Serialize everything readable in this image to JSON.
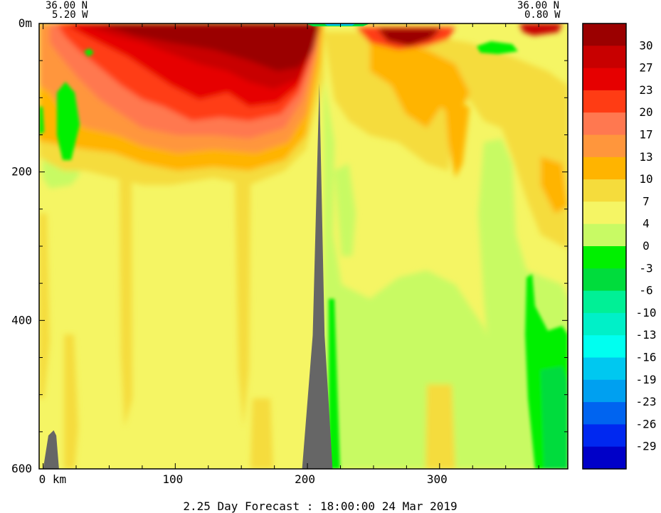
{
  "chart_data": {
    "type": "heatmap",
    "xlabel": "km",
    "x_ticks": [
      0,
      100,
      200,
      300
    ],
    "x_tick_labels": [
      "0 km",
      "100",
      "200",
      "300"
    ],
    "xlim": [
      -3,
      397
    ],
    "y_ticks": [
      0,
      200,
      400,
      600
    ],
    "y_tick_labels": [
      "0m",
      "200",
      "400",
      "600"
    ],
    "ylim": [
      0,
      600
    ],
    "y_inverted": true,
    "left_coord": {
      "lat": "36.00 N",
      "lon": "5.20 W"
    },
    "right_coord": {
      "lat": "36.00 N",
      "lon": "0.80 W"
    },
    "footer": "2.25 Day Forecast : 18:00:00  24 Mar 2019",
    "colorbar": {
      "levels": [
        30,
        27,
        23,
        20,
        17,
        13,
        10,
        7,
        4,
        0,
        -3,
        -6,
        -10,
        -13,
        -16,
        -19,
        -23,
        -26,
        -29
      ],
      "colors": [
        "#9b0000",
        "#c80000",
        "#e60000",
        "#ff3c14",
        "#ff7850",
        "#ff963c",
        "#ffb400",
        "#f5dc3c",
        "#f5f564",
        "#c8fa64",
        "#00f000",
        "#00dc3c",
        "#00f096",
        "#00f0c8",
        "#00fff0",
        "#00c8f0",
        "#00a0f0",
        "#0064f0",
        "#0028f0",
        "#0000c8"
      ]
    },
    "land_mask": [
      {
        "name": "seafloor-left",
        "x": [
          0,
          4,
          8,
          10,
          12
        ],
        "depth": [
          600,
          555,
          548,
          555,
          600
        ]
      },
      {
        "name": "seafloor-ridge",
        "x": [
          196,
          204,
          209,
          213,
          219
        ],
        "depth": [
          600,
          420,
          80,
          420,
          600
        ]
      }
    ]
  }
}
